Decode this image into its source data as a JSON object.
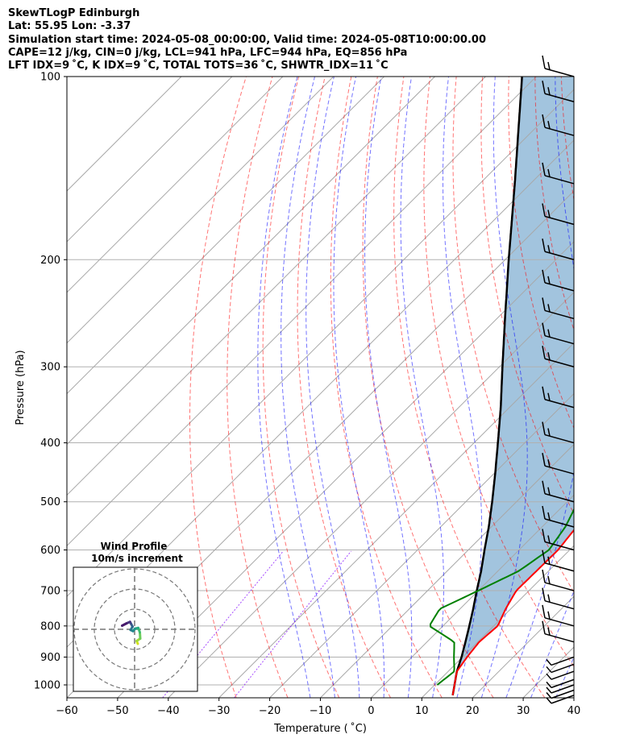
{
  "header": {
    "line1": "SkewTLogP Edinburgh",
    "line2": "Lat: 55.95   Lon: -3.37",
    "line3": "Simulation start time: 2024-05-08_00:00:00, Valid time: 2024-05-08T10:00:00.00",
    "line4": "CAPE=12 j/kg, CIN=0 j/kg, LCL=941 hPa, LFC=944 hPa, EQ=856 hPa",
    "line5": "LFT IDX=9 ˚C, K IDX=9 ˚C, TOTAL TOTS=36 ˚C, SHWTR_IDX=11 ˚C"
  },
  "colors": {
    "temperature": "#ff0000",
    "dewpoint": "#008000",
    "parcel": "#000000",
    "cape_fill": "#a2c4de",
    "dry_adiabat": "#ff0000",
    "moist_adiabat": "#0000ff",
    "mixing_ratio": "#8000ff",
    "isotherm": "#a8a8a8",
    "isobar": "#b0b0b0"
  },
  "chart_data": {
    "type": "skew-t log-p",
    "xlabel": "Temperature ( ˚C)",
    "ylabel": "Pressure (hPa)",
    "xlim": [
      -60,
      40
    ],
    "ylim": [
      1050,
      100
    ],
    "xticks": [
      -60,
      -50,
      -40,
      -30,
      -20,
      -10,
      0,
      10,
      20,
      30,
      40
    ],
    "xtick_labels": [
      "−60",
      "−50",
      "−40",
      "−30",
      "−20",
      "−10",
      "0",
      "10",
      "20",
      "30",
      "40"
    ],
    "yticks": [
      1000,
      900,
      800,
      700,
      600,
      500,
      400,
      300,
      200,
      100
    ],
    "ytick_labels": [
      "1000",
      "900",
      "800",
      "700",
      "600",
      "500",
      "400",
      "300",
      "200",
      "100"
    ],
    "temperature_profile": [
      [
        1040,
        15.6
      ],
      [
        950,
        11.7
      ],
      [
        900,
        10.9
      ],
      [
        850,
        10.3
      ],
      [
        800,
        10.8
      ],
      [
        750,
        9.0
      ],
      [
        700,
        7.5
      ],
      [
        650,
        7.6
      ],
      [
        600,
        7.7
      ],
      [
        550,
        6.8
      ],
      [
        500,
        4.9
      ],
      [
        450,
        2.9
      ],
      [
        400,
        -0.1
      ],
      [
        350,
        -5.3
      ],
      [
        300,
        -13.8
      ],
      [
        260,
        -20.2
      ],
      [
        240,
        -24.1
      ],
      [
        220,
        -25.6
      ],
      [
        200,
        -27.4
      ],
      [
        190,
        -29.6
      ],
      [
        180,
        -30.6
      ],
      [
        160,
        -31.8
      ],
      [
        150,
        -32.4
      ],
      [
        140,
        -32.9
      ],
      [
        130,
        -33.8
      ],
      [
        120,
        -35.6
      ],
      [
        110,
        -37.6
      ],
      [
        100,
        -40.6
      ]
    ],
    "dewpoint_profile": [
      [
        1000,
        10.5
      ],
      [
        950,
        11.2
      ],
      [
        900,
        8.3
      ],
      [
        850,
        5.4
      ],
      [
        800,
        -2.7
      ],
      [
        750,
        -4.0
      ],
      [
        700,
        0.0
      ],
      [
        650,
        4.1
      ],
      [
        600,
        5.9
      ],
      [
        550,
        4.6
      ],
      [
        500,
        2.1
      ],
      [
        450,
        0.0
      ],
      [
        400,
        -3.3
      ],
      [
        350,
        -10.7
      ],
      [
        330,
        -18.0
      ],
      [
        300,
        -19.4
      ],
      [
        280,
        -22.0
      ],
      [
        240,
        -29.1
      ],
      [
        220,
        -31.6
      ],
      [
        200,
        -35.1
      ],
      [
        190,
        -34.6
      ],
      [
        180,
        -34.0
      ],
      [
        160,
        -36.9
      ],
      [
        150,
        -38.7
      ],
      [
        140,
        -41.5
      ],
      [
        120,
        -48.4
      ],
      [
        100,
        -54.9
      ]
    ],
    "parcel_profile": [
      [
        1040,
        15.6
      ],
      [
        950,
        11.7
      ],
      [
        900,
        9.8
      ],
      [
        850,
        7.6
      ],
      [
        800,
        5.2
      ],
      [
        750,
        2.6
      ],
      [
        700,
        -0.3
      ],
      [
        650,
        -3.3
      ],
      [
        600,
        -6.8
      ],
      [
        550,
        -10.5
      ],
      [
        500,
        -14.8
      ],
      [
        450,
        -19.7
      ],
      [
        400,
        -25.3
      ],
      [
        350,
        -31.7
      ],
      [
        300,
        -39.4
      ],
      [
        250,
        -48.4
      ],
      [
        200,
        -59.3
      ],
      [
        150,
        -73.1
      ],
      [
        100,
        -92.8
      ]
    ],
    "wind_barbs_pressure": [
      1040,
      1020,
      1000,
      980,
      950,
      925,
      900,
      850,
      800,
      750,
      700,
      650,
      600,
      550,
      500,
      450,
      400,
      350,
      300,
      275,
      250,
      225,
      200,
      175,
      150,
      125,
      110,
      100
    ],
    "hodograph": {
      "title": "Wind Profile",
      "subtitle": "10m/s increment",
      "points": [
        [
          1.6,
          -7.2
        ],
        [
          1.0,
          -5.8
        ],
        [
          2.8,
          -4.6
        ],
        [
          2.6,
          -1.5
        ],
        [
          1.8,
          0.7
        ],
        [
          0.2,
          0.3
        ],
        [
          -0.8,
          -0.9
        ],
        [
          -2.0,
          -0.3
        ],
        [
          -1.0,
          1.3
        ],
        [
          -1.8,
          2.8
        ],
        [
          -2.3,
          3.7
        ],
        [
          -4.1,
          2.9
        ],
        [
          -6.2,
          1.8
        ]
      ]
    }
  }
}
